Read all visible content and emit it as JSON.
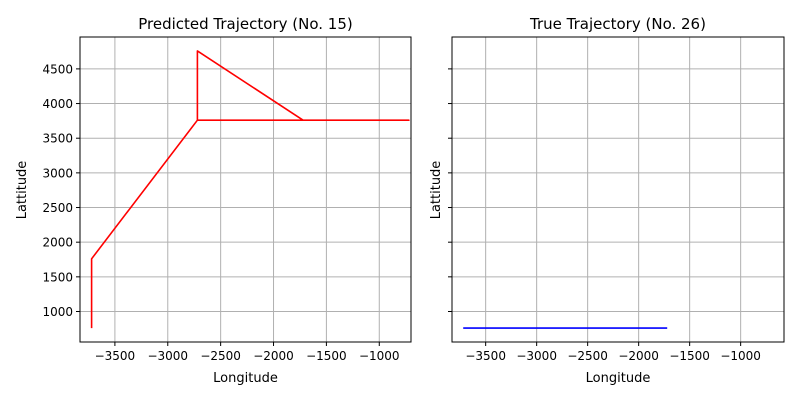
{
  "chart_data": [
    {
      "type": "line",
      "title": "Predicted Trajectory (No. 15)",
      "xlabel": "Longitude",
      "ylabel": "Lattitude",
      "xlim": [
        -3830,
        -700
      ],
      "ylim": [
        560,
        4960
      ],
      "xticks": [
        -3500,
        -3000,
        -2500,
        -2000,
        -1500,
        -1000
      ],
      "yticks": [
        1000,
        1500,
        2000,
        2500,
        3000,
        3500,
        4000,
        4500
      ],
      "xtick_labels": [
        "−3500",
        "−3000",
        "−2500",
        "−2000",
        "−1500",
        "−1000"
      ],
      "ytick_labels": [
        "1000",
        "1500",
        "2000",
        "2500",
        "3000",
        "3500",
        "4000",
        "4500"
      ],
      "show_ytick_labels": true,
      "grid": true,
      "series": [
        {
          "color": "#ff0000",
          "x": [
            -3720,
            -3720,
            -3720,
            -2720,
            -2720,
            -2720,
            -2720,
            -1720,
            -720,
            -1720,
            -2720
          ],
          "y": [
            760,
            1760,
            1760,
            3760,
            4760,
            3760,
            4760,
            3760,
            3760,
            3760,
            3760
          ]
        }
      ]
    },
    {
      "type": "line",
      "title": "True Trajectory (No. 26)",
      "xlabel": "Longitude",
      "ylabel": "Lattitude",
      "xlim": [
        -3830,
        -575
      ],
      "ylim": [
        560,
        4960
      ],
      "xticks": [
        -3500,
        -3000,
        -2500,
        -2000,
        -1500,
        -1000
      ],
      "yticks": [
        1000,
        1500,
        2000,
        2500,
        3000,
        3500,
        4000,
        4500
      ],
      "xtick_labels": [
        "−3500",
        "−3000",
        "−2500",
        "−2000",
        "−1500",
        "−1000"
      ],
      "ytick_labels": [
        "1000",
        "1500",
        "2000",
        "2500",
        "3000",
        "3500",
        "4000",
        "4500"
      ],
      "show_ytick_labels": false,
      "grid": true,
      "series": [
        {
          "color": "#0000ff",
          "x": [
            -3720,
            -1720
          ],
          "y": [
            760,
            760
          ]
        }
      ]
    }
  ]
}
